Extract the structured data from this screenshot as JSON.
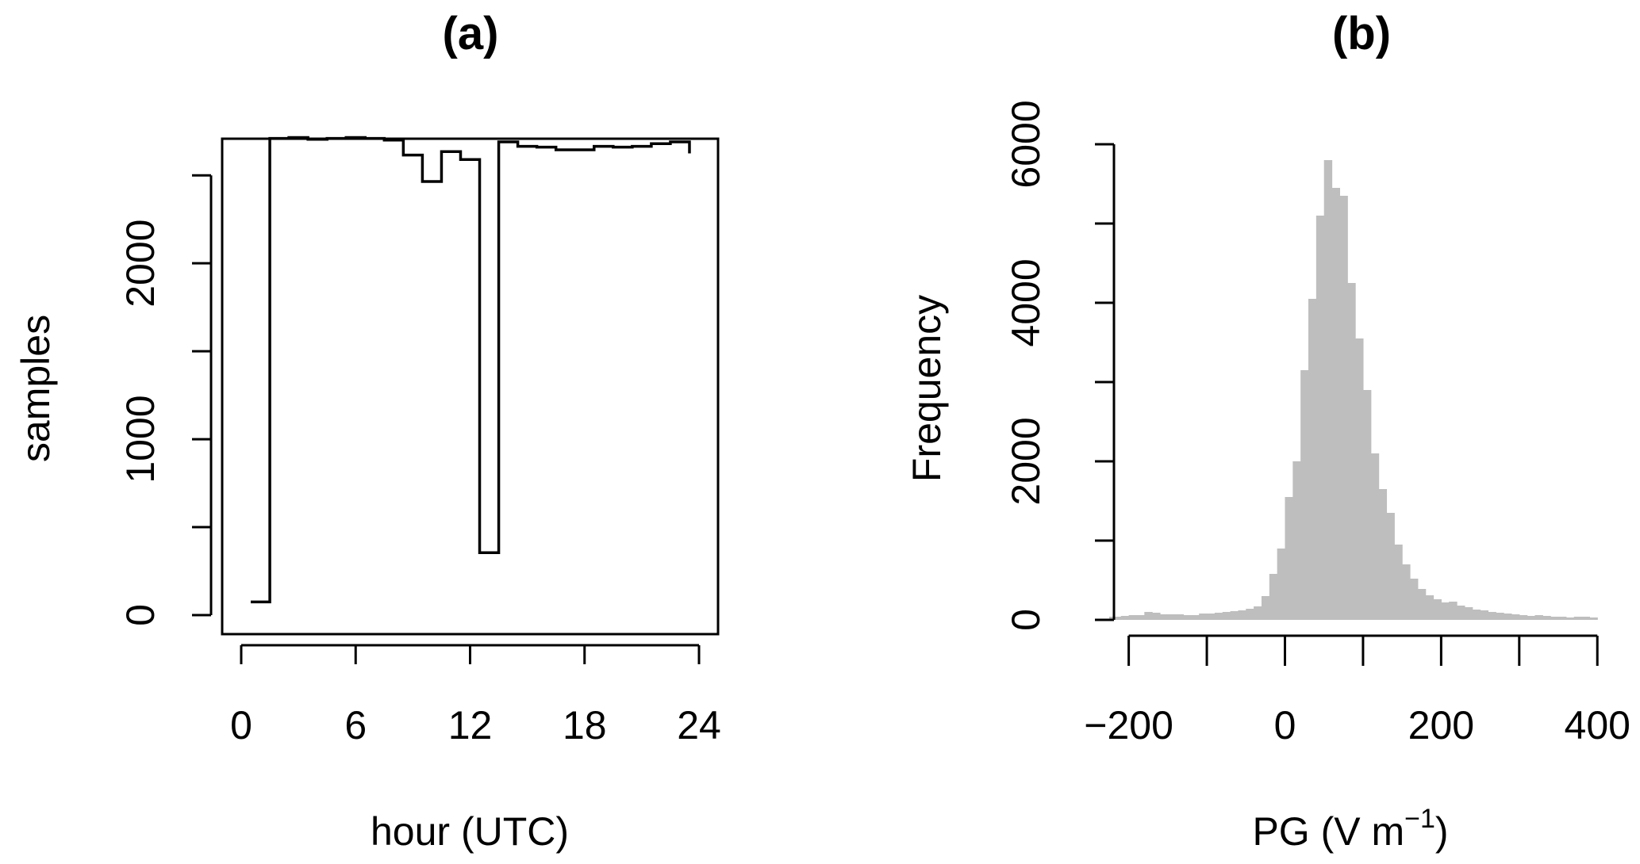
{
  "chart_data": [
    {
      "type": "line",
      "title": "(a)",
      "xlabel": "hour (UTC)",
      "ylabel": "samples",
      "xlim": [
        0,
        24
      ],
      "ylim": [
        0,
        2600
      ],
      "x_ticks": [
        "0",
        "6",
        "12",
        "18",
        "24"
      ],
      "y_ticks": [
        "0",
        "1000",
        "2000"
      ],
      "y_minor_ticks": [
        0,
        500,
        1000,
        1500,
        2000,
        2500
      ],
      "grid": false,
      "box": true,
      "step": true,
      "series": [
        {
          "x": [
            0.5,
            1.5,
            2.5,
            3.5,
            4.5,
            5.5,
            6.5,
            7.5,
            8.5,
            9.5,
            10.5,
            11.5,
            12.5,
            13.5,
            14.5,
            15.5,
            16.5,
            17.5,
            18.5,
            19.5,
            20.5,
            21.5,
            22.5,
            23.5
          ],
          "values": [
            75,
            2710,
            2715,
            2705,
            2710,
            2715,
            2710,
            2700,
            2615,
            2465,
            2635,
            2590,
            355,
            2690,
            2665,
            2660,
            2645,
            2645,
            2665,
            2660,
            2665,
            2680,
            2690,
            2625
          ]
        }
      ]
    },
    {
      "type": "bar",
      "subtype": "histogram",
      "title": "(b)",
      "xlabel": "PG (V m",
      "xlabel_superscript": "−1",
      "xlabel_suffix": ")",
      "ylabel": "Frequency",
      "xlim": [
        -225,
        415
      ],
      "ylim": [
        0,
        6000
      ],
      "x_ticks": [
        "−200",
        "0",
        "200",
        "400"
      ],
      "x_minor_ticks": [
        -200,
        -100,
        0,
        100,
        200,
        300,
        400
      ],
      "y_ticks": [
        "0",
        "2000",
        "4000",
        "6000"
      ],
      "y_minor_ticks": [
        0,
        1000,
        2000,
        3000,
        4000,
        5000,
        6000
      ],
      "bar_color": "#bebebe",
      "grid": false,
      "bin_width": 10,
      "bin_start": -230,
      "values": [
        40,
        40,
        50,
        60,
        60,
        100,
        90,
        70,
        70,
        70,
        60,
        60,
        80,
        80,
        90,
        100,
        110,
        120,
        140,
        170,
        300,
        580,
        900,
        1550,
        2000,
        3150,
        4050,
        5100,
        5800,
        5450,
        5350,
        4250,
        3550,
        2900,
        2100,
        1650,
        1350,
        950,
        700,
        520,
        390,
        310,
        260,
        220,
        230,
        180,
        160,
        130,
        120,
        100,
        90,
        80,
        70,
        60,
        50,
        60,
        50,
        40,
        40,
        30,
        40,
        40,
        30
      ]
    }
  ]
}
